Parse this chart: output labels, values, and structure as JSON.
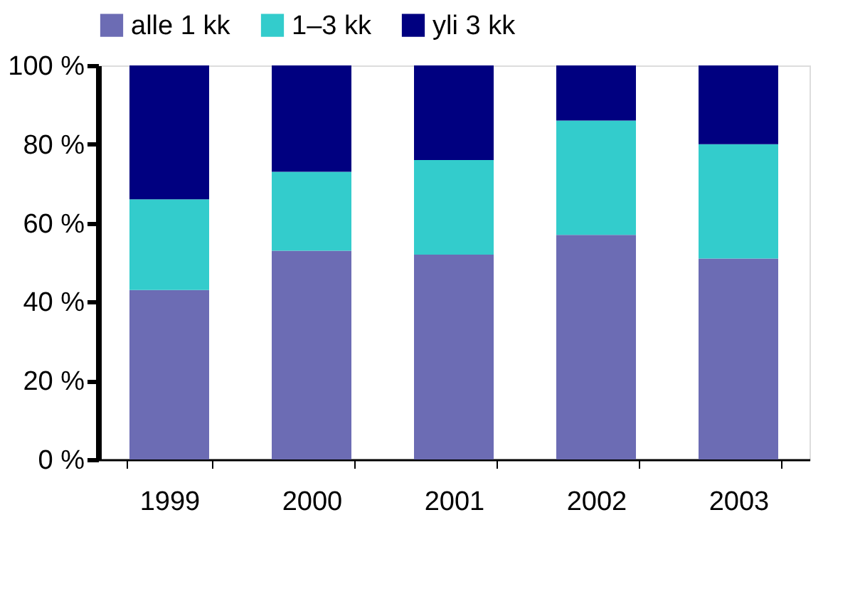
{
  "chart_data": {
    "type": "bar",
    "stacked": true,
    "categories": [
      "1999",
      "2000",
      "2001",
      "2002",
      "2003"
    ],
    "series": [
      {
        "name": "alle 1 kk",
        "color": "#6c6cb4",
        "values": [
          43,
          53,
          52,
          57,
          51
        ]
      },
      {
        "name": "1–3 kk",
        "color": "#33cccc",
        "values": [
          23,
          20,
          24,
          29,
          29
        ]
      },
      {
        "name": "yli 3 kk",
        "color": "#000080",
        "values": [
          34,
          27,
          24,
          14,
          20
        ]
      }
    ],
    "ylim": [
      0,
      100
    ],
    "yticks": [
      {
        "value": 0,
        "label": "0 %"
      },
      {
        "value": 20,
        "label": "20 %"
      },
      {
        "value": 40,
        "label": "40 %"
      },
      {
        "value": 60,
        "label": "60 %"
      },
      {
        "value": 80,
        "label": "80 %"
      },
      {
        "value": 100,
        "label": "100 %"
      }
    ],
    "legend": "top",
    "grid": false
  }
}
